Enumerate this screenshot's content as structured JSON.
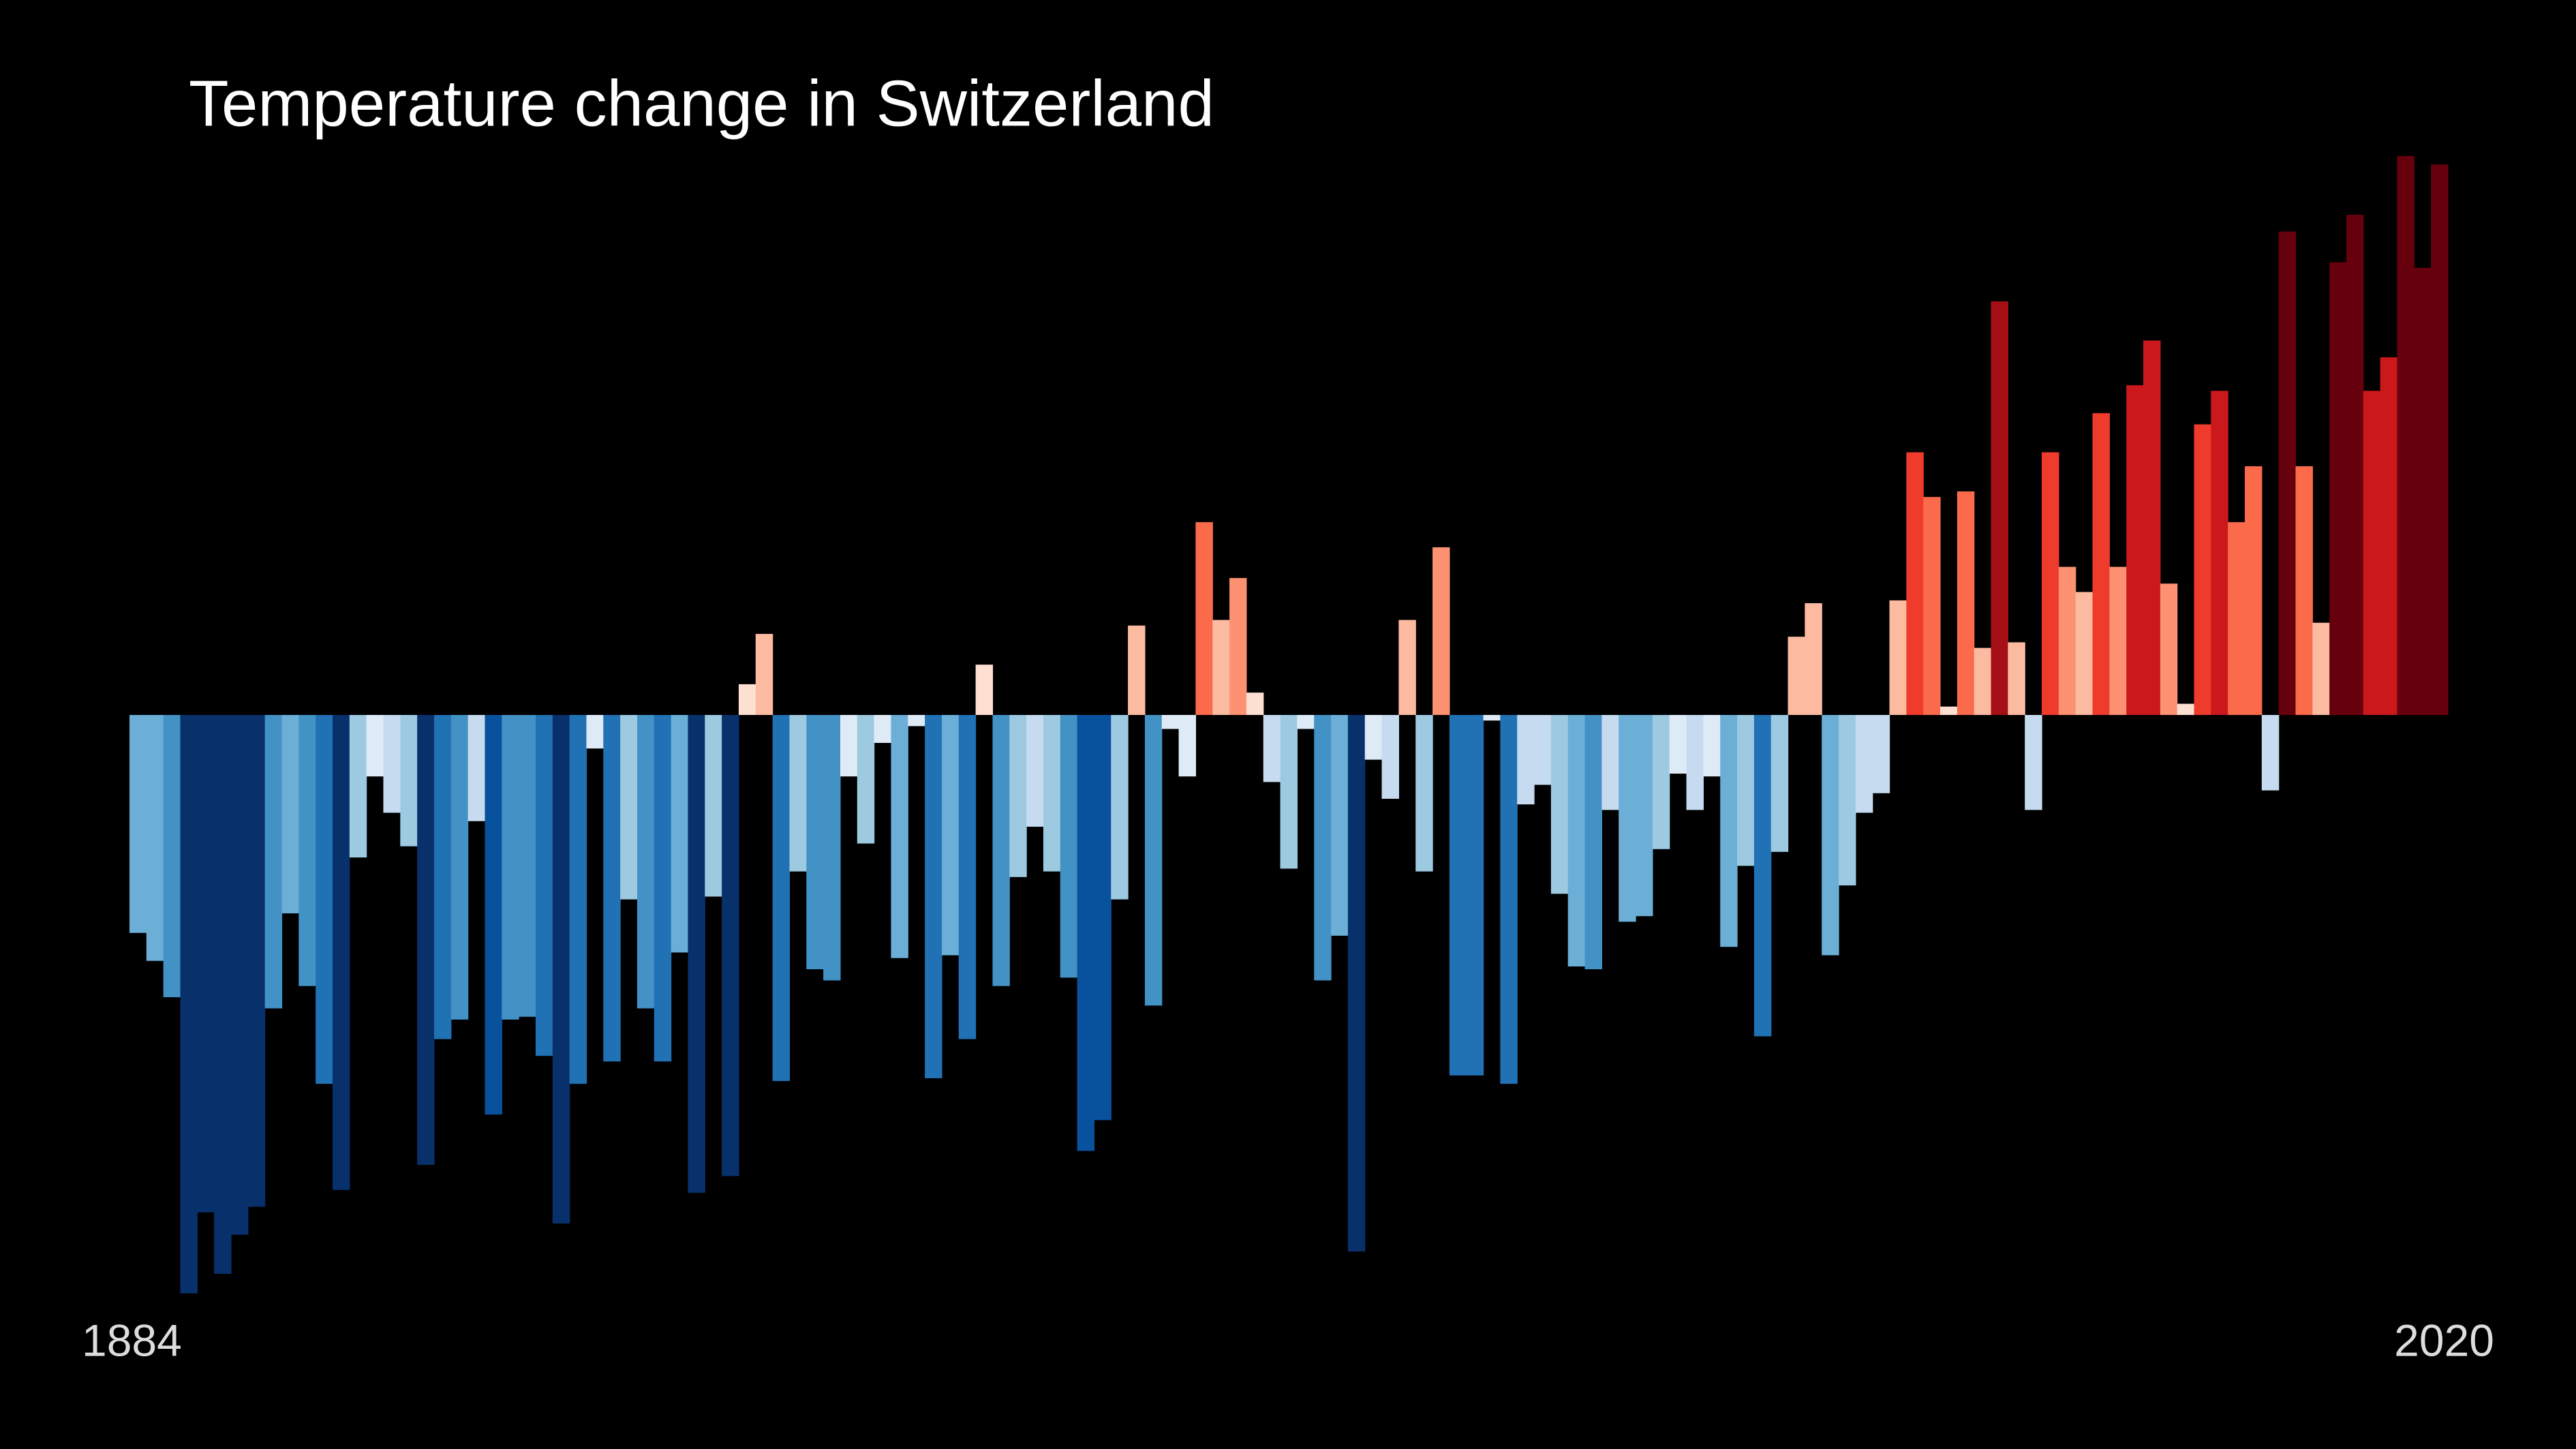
{
  "chart_data": {
    "type": "bar",
    "title": "Temperature change in Switzerland",
    "categories": [
      "1884",
      null,
      null,
      null,
      null,
      null,
      null,
      null,
      null,
      null,
      null,
      null,
      null,
      null,
      null,
      null,
      null,
      null,
      null,
      null,
      null,
      null,
      null,
      null,
      null,
      null,
      null,
      null,
      null,
      null,
      null,
      null,
      null,
      null,
      null,
      null,
      null,
      null,
      null,
      null,
      null,
      null,
      null,
      null,
      null,
      null,
      null,
      null,
      null,
      null,
      null,
      null,
      null,
      null,
      null,
      null,
      null,
      null,
      null,
      null,
      null,
      null,
      null,
      null,
      null,
      null,
      null,
      null,
      null,
      null,
      null,
      null,
      null,
      null,
      null,
      null,
      null,
      null,
      null,
      null,
      null,
      null,
      null,
      null,
      null,
      null,
      null,
      null,
      null,
      null,
      null,
      null,
      null,
      null,
      null,
      null,
      null,
      null,
      null,
      null,
      null,
      null,
      null,
      null,
      null,
      null,
      null,
      null,
      null,
      null,
      null,
      null,
      null,
      null,
      null,
      null,
      null,
      null,
      null,
      null,
      null,
      null,
      null,
      null,
      null,
      null,
      null,
      null,
      null,
      null,
      null,
      null,
      null,
      null,
      null,
      null,
      "2020"
    ],
    "values": [
      -0.78,
      -0.88,
      -1.01,
      -2.07,
      -1.78,
      -2.0,
      -1.86,
      -1.76,
      -1.05,
      -0.71,
      -0.97,
      -1.32,
      -1.7,
      -0.51,
      -0.22,
      -0.35,
      -0.47,
      -1.61,
      -1.16,
      -1.09,
      -0.38,
      -1.43,
      -1.09,
      -1.08,
      -1.22,
      -1.82,
      -1.32,
      -0.12,
      -1.24,
      -0.66,
      -1.05,
      -1.24,
      -0.85,
      -1.71,
      -0.65,
      -1.65,
      0.11,
      0.29,
      -1.31,
      -0.56,
      -0.91,
      -0.95,
      -0.22,
      -0.46,
      -0.1,
      -0.87,
      -0.04,
      -1.3,
      -0.86,
      -1.16,
      0.18,
      -0.97,
      -0.58,
      -0.4,
      -0.56,
      -0.94,
      -1.56,
      -1.45,
      -0.66,
      0.32,
      -1.04,
      -0.05,
      -0.22,
      0.69,
      0.34,
      0.49,
      0.08,
      -0.24,
      -0.55,
      -0.05,
      -0.95,
      -0.79,
      -1.92,
      -0.16,
      -0.3,
      0.34,
      -0.56,
      0.6,
      -1.29,
      -1.29,
      -0.02,
      -1.32,
      -0.32,
      -0.25,
      -0.64,
      -0.9,
      -0.91,
      -0.34,
      -0.74,
      -0.72,
      -0.48,
      -0.21,
      -0.34,
      -0.22,
      -0.83,
      -0.54,
      -1.15,
      -0.49,
      0.28,
      0.4,
      -0.86,
      -0.61,
      -0.35,
      -0.28,
      0.41,
      0.94,
      0.78,
      0.03,
      0.8,
      0.24,
      1.48,
      0.26,
      -0.34,
      0.94,
      0.53,
      0.44,
      1.08,
      0.53,
      1.18,
      1.34,
      0.47,
      0.04,
      1.04,
      1.16,
      0.69,
      0.89,
      -0.27,
      1.73,
      0.89,
      0.33,
      1.62,
      1.79,
      1.16,
      1.28,
      2.0,
      1.6,
      1.97
    ],
    "ylim": [
      -2.2,
      2.2
    ],
    "clim": [
      -1.8,
      1.8
    ],
    "colormap": [
      "#08306b",
      "#08519c",
      "#2171b5",
      "#4292c6",
      "#6baed6",
      "#9ecae1",
      "#c6dbef",
      "#deebf7",
      "#fee0d2",
      "#fcbba1",
      "#fc9272",
      "#fb6a4a",
      "#ef3b2c",
      "#cb181d",
      "#a50f15",
      "#67000d"
    ]
  }
}
